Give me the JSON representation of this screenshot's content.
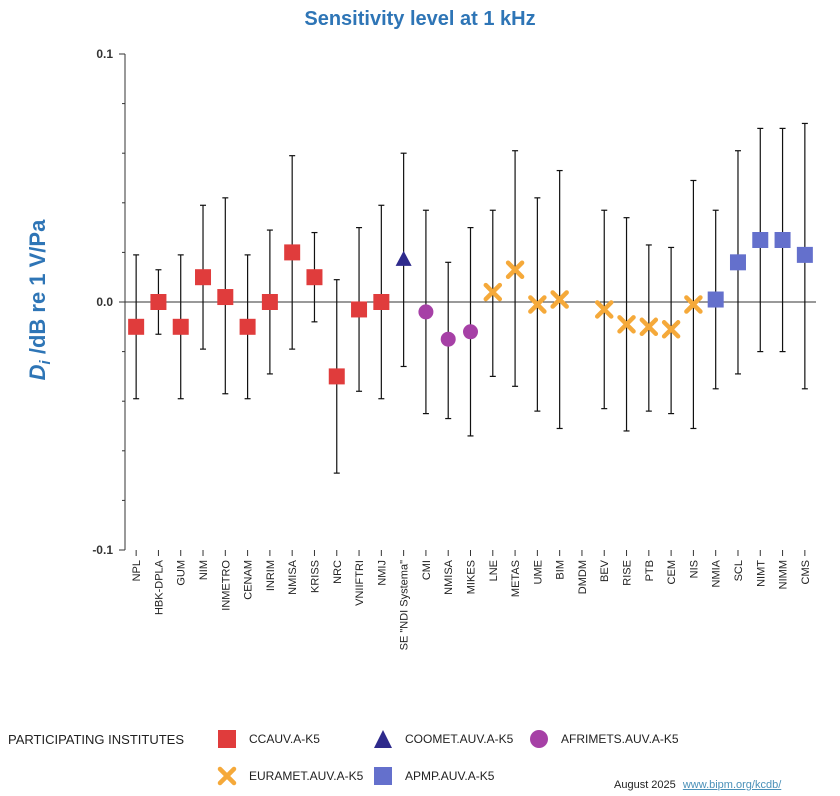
{
  "chart_data": {
    "type": "scatter",
    "title": "Sensitivity level at 1 kHz",
    "ylabel_main": "D",
    "ylabel_sub": "i",
    "ylabel_rest": " /dB re 1 V/Pa",
    "ylim": [
      -0.1,
      0.1
    ],
    "yticks": [
      "0.1",
      "0.0",
      "-0.1"
    ],
    "ytick_values": [
      0.1,
      0.0,
      -0.1
    ],
    "legend_title": "PARTICIPATING INSTITUTES",
    "groups": [
      {
        "id": "ccauv",
        "name": "CCAUV.A-K5",
        "marker": "square",
        "color": "#e03c3c"
      },
      {
        "id": "coomet",
        "name": "COOMET.AUV.A-K5",
        "marker": "triangle",
        "color": "#2e2a8c"
      },
      {
        "id": "afrimets",
        "name": "AFRIMETS.AUV.A-K5",
        "marker": "circle",
        "color": "#a640a6"
      },
      {
        "id": "euramet",
        "name": "EURAMET.AUV.A-K5",
        "marker": "cross",
        "color": "#f5a93a"
      },
      {
        "id": "apmp",
        "name": "APMP.AUV.A-K5",
        "marker": "square",
        "color": "#6470cc"
      }
    ],
    "points": [
      {
        "label": "NPL",
        "group": "ccauv",
        "value": -0.01,
        "low": -0.039,
        "high": 0.019
      },
      {
        "label": "HBK-DPLA",
        "group": "ccauv",
        "value": 0.0,
        "low": -0.013,
        "high": 0.013
      },
      {
        "label": "GUM",
        "group": "ccauv",
        "value": -0.01,
        "low": -0.039,
        "high": 0.019
      },
      {
        "label": "NIM",
        "group": "ccauv",
        "value": 0.01,
        "low": -0.019,
        "high": 0.039
      },
      {
        "label": "INMETRO",
        "group": "ccauv",
        "value": 0.002,
        "low": -0.037,
        "high": 0.042
      },
      {
        "label": "CENAM",
        "group": "ccauv",
        "value": -0.01,
        "low": -0.039,
        "high": 0.019
      },
      {
        "label": "INRIM",
        "group": "ccauv",
        "value": 0.0,
        "low": -0.029,
        "high": 0.029
      },
      {
        "label": "NMISA",
        "group": "ccauv",
        "value": 0.02,
        "low": -0.019,
        "high": 0.059
      },
      {
        "label": "KRISS",
        "group": "ccauv",
        "value": 0.01,
        "low": -0.008,
        "high": 0.028
      },
      {
        "label": "NRC",
        "group": "ccauv",
        "value": -0.03,
        "low": -0.069,
        "high": 0.009
      },
      {
        "label": "VNIIFTRI",
        "group": "ccauv",
        "value": -0.003,
        "low": -0.036,
        "high": 0.03
      },
      {
        "label": "NMIJ",
        "group": "ccauv",
        "value": 0.0,
        "low": -0.039,
        "high": 0.039
      },
      {
        "label": "SE \"NDI Systema\"",
        "group": "coomet",
        "value": 0.017,
        "low": -0.026,
        "high": 0.06
      },
      {
        "label": "CMI",
        "group": "afrimets",
        "value": -0.004,
        "low": -0.045,
        "high": 0.037
      },
      {
        "label": "NMISA",
        "group": "afrimets",
        "value": -0.015,
        "low": -0.047,
        "high": 0.016
      },
      {
        "label": "MIKES",
        "group": "afrimets",
        "value": -0.012,
        "low": -0.054,
        "high": 0.03
      },
      {
        "label": "LNE",
        "group": "euramet",
        "value": 0.004,
        "low": -0.03,
        "high": 0.037
      },
      {
        "label": "METAS",
        "group": "euramet",
        "value": 0.013,
        "low": -0.034,
        "high": 0.061
      },
      {
        "label": "UME",
        "group": "euramet",
        "value": -0.001,
        "low": -0.044,
        "high": 0.042
      },
      {
        "label": "BIM",
        "group": "euramet",
        "value": 0.001,
        "low": -0.051,
        "high": 0.053
      },
      {
        "label": "DMDM",
        "group": "euramet",
        "value": null,
        "low": null,
        "high": null
      },
      {
        "label": "BEV",
        "group": "euramet",
        "value": -0.003,
        "low": -0.043,
        "high": 0.037
      },
      {
        "label": "RISE",
        "group": "euramet",
        "value": -0.009,
        "low": -0.052,
        "high": 0.034
      },
      {
        "label": "PTB",
        "group": "euramet",
        "value": -0.01,
        "low": -0.044,
        "high": 0.023
      },
      {
        "label": "CEM",
        "group": "euramet",
        "value": -0.011,
        "low": -0.045,
        "high": 0.022
      },
      {
        "label": "NIS",
        "group": "euramet",
        "value": -0.001,
        "low": -0.051,
        "high": 0.049
      },
      {
        "label": "NMIA",
        "group": "apmp",
        "value": 0.001,
        "low": -0.035,
        "high": 0.037
      },
      {
        "label": "SCL",
        "group": "apmp",
        "value": 0.016,
        "low": -0.029,
        "high": 0.061
      },
      {
        "label": "NIMT",
        "group": "apmp",
        "value": 0.025,
        "low": -0.02,
        "high": 0.07
      },
      {
        "label": "NIMM",
        "group": "apmp",
        "value": 0.025,
        "low": -0.02,
        "high": 0.07
      },
      {
        "label": "CMS",
        "group": "apmp",
        "value": 0.019,
        "low": -0.035,
        "high": 0.072
      }
    ]
  },
  "footer": {
    "date": "August 2025",
    "link": "www.bipm.org/kcdb/"
  }
}
